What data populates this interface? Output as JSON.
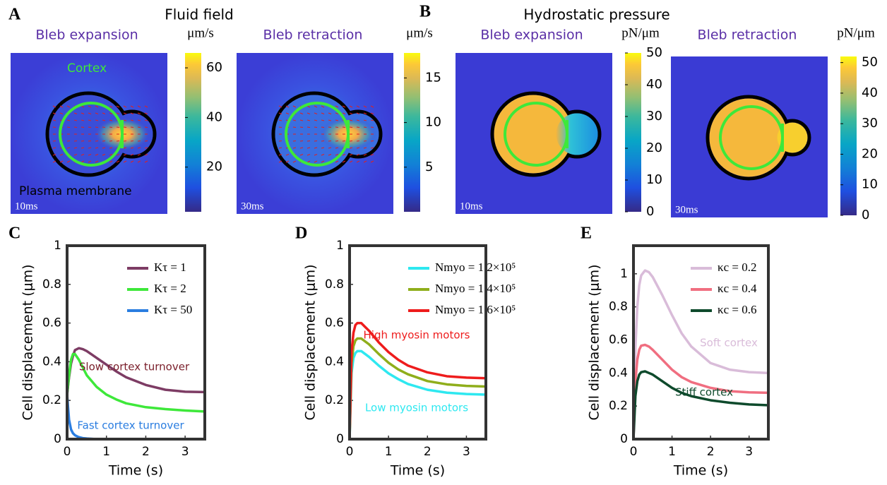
{
  "panels": [
    {
      "label": "A",
      "title": "Fluid field"
    },
    {
      "label": "B",
      "title": "Hydrostatic pressure"
    },
    {
      "label": "C"
    },
    {
      "label": "D"
    },
    {
      "label": "E"
    }
  ],
  "chart_data": [
    {
      "type": "map",
      "title": "Bleb expansion",
      "unit": "μm/s",
      "time": "10ms",
      "annotations": [
        "Cortex",
        "Plasma membrane"
      ],
      "clim": [
        2,
        66
      ],
      "cticks": [
        20,
        40,
        60
      ]
    },
    {
      "type": "map",
      "title": "Bleb retraction",
      "unit": "μm/s",
      "time": "30ms",
      "clim": [
        0,
        17.8
      ],
      "cticks": [
        5,
        10,
        15
      ]
    },
    {
      "type": "map",
      "title": "Bleb expansion",
      "unit": "pN/μm",
      "time": "10ms",
      "clim": [
        0,
        50
      ],
      "cticks": [
        0,
        10,
        20,
        30,
        40,
        50
      ]
    },
    {
      "type": "map",
      "title": "Bleb retraction",
      "unit": "pN/μm",
      "time": "30ms",
      "clim": [
        0,
        52
      ],
      "cticks": [
        0,
        10,
        20,
        30,
        40,
        50
      ]
    },
    {
      "type": "line",
      "xlabel": "Time (s)",
      "ylabel": "Cell displacement (μm)",
      "legend": "upper right",
      "x": [
        0,
        0.05,
        0.1,
        0.15,
        0.2,
        0.3,
        0.4,
        0.5,
        0.75,
        1,
        1.25,
        1.5,
        2,
        2.5,
        3,
        3.5
      ],
      "xlim": [
        0,
        3.5
      ],
      "xticks": [
        0,
        1,
        2,
        3
      ],
      "ylim": [
        0,
        1
      ],
      "yticks": [
        0,
        0.2,
        0.4,
        0.6,
        0.8,
        1
      ],
      "series": [
        {
          "name": "Kτ = 1",
          "color": "#7d3c64",
          "values": [
            0.23,
            0.32,
            0.39,
            0.43,
            0.46,
            0.47,
            0.465,
            0.455,
            0.42,
            0.385,
            0.35,
            0.32,
            0.28,
            0.255,
            0.245,
            0.243
          ]
        },
        {
          "name": "Kτ = 2",
          "color": "#3ee83a",
          "values": [
            0.23,
            0.33,
            0.41,
            0.44,
            0.44,
            0.41,
            0.37,
            0.33,
            0.27,
            0.23,
            0.205,
            0.185,
            0.165,
            0.155,
            0.148,
            0.143
          ]
        },
        {
          "name": "Kτ = 50",
          "color": "#2a7de0",
          "values": [
            0.23,
            0.1,
            0.05,
            0.03,
            0.02,
            0.01,
            0.005,
            0.003,
            0,
            0,
            0,
            0,
            0,
            0,
            0,
            0
          ]
        }
      ],
      "annotations": [
        {
          "text": "Slow cortex turnover",
          "color": "#7a1e2a"
        },
        {
          "text": "Fast cortex turnover",
          "color": "#2a7de0"
        }
      ]
    },
    {
      "type": "line",
      "xlabel": "Time (s)",
      "ylabel": "Cell displacement (μm)",
      "legend": "upper right",
      "x": [
        0,
        0.05,
        0.1,
        0.15,
        0.2,
        0.3,
        0.4,
        0.5,
        0.75,
        1,
        1.25,
        1.5,
        2,
        2.5,
        3,
        3.5
      ],
      "xlim": [
        0,
        3.5
      ],
      "xticks": [
        0,
        1,
        2,
        3
      ],
      "ylim": [
        0,
        1
      ],
      "yticks": [
        0,
        0.2,
        0.4,
        0.6,
        0.8,
        1
      ],
      "series": [
        {
          "name": "Nmyo = 1.2×10⁵",
          "color": "#2ee8f0",
          "values": [
            0,
            0.34,
            0.42,
            0.445,
            0.455,
            0.455,
            0.44,
            0.425,
            0.38,
            0.34,
            0.31,
            0.285,
            0.255,
            0.24,
            0.233,
            0.23
          ]
        },
        {
          "name": "Nmyo = 1.4×10⁵",
          "color": "#8fae1b",
          "values": [
            0,
            0.39,
            0.48,
            0.51,
            0.52,
            0.52,
            0.505,
            0.49,
            0.44,
            0.395,
            0.36,
            0.335,
            0.3,
            0.283,
            0.275,
            0.272
          ]
        },
        {
          "name": "Nmyo = 1.6×10⁵",
          "color": "#ee1c1c",
          "values": [
            0,
            0.45,
            0.55,
            0.59,
            0.6,
            0.6,
            0.58,
            0.56,
            0.5,
            0.45,
            0.41,
            0.38,
            0.345,
            0.325,
            0.318,
            0.315
          ]
        }
      ],
      "annotations": [
        {
          "text": "High myosin motors",
          "color": "#ee1c1c"
        },
        {
          "text": "Low myosin motors",
          "color": "#2ee8f0"
        }
      ]
    },
    {
      "type": "line",
      "xlabel": "Time (s)",
      "ylabel": "Cell displacement (μm)",
      "legend": "upper right",
      "x": [
        0,
        0.05,
        0.1,
        0.15,
        0.2,
        0.3,
        0.4,
        0.5,
        0.75,
        1,
        1.25,
        1.5,
        2,
        2.5,
        3,
        3.5
      ],
      "xlim": [
        0,
        3.5
      ],
      "xticks": [
        0,
        1,
        2,
        3
      ],
      "ylim": [
        0,
        1.17
      ],
      "yticks": [
        0,
        0.2,
        0.4,
        0.6,
        0.8,
        1
      ],
      "series": [
        {
          "name": "κc = 0.2",
          "color": "#d9bcd9",
          "values": [
            0,
            0.55,
            0.8,
            0.93,
            0.99,
            1.02,
            1.01,
            0.98,
            0.87,
            0.75,
            0.64,
            0.56,
            0.46,
            0.42,
            0.405,
            0.4
          ]
        },
        {
          "name": "κc = 0.4",
          "color": "#f06e80",
          "values": [
            0,
            0.35,
            0.48,
            0.54,
            0.565,
            0.57,
            0.56,
            0.54,
            0.48,
            0.42,
            0.375,
            0.345,
            0.31,
            0.29,
            0.283,
            0.28
          ]
        },
        {
          "name": "κc = 0.6",
          "color": "#0e4a2c",
          "values": [
            0,
            0.26,
            0.35,
            0.39,
            0.405,
            0.41,
            0.4,
            0.39,
            0.35,
            0.31,
            0.28,
            0.26,
            0.235,
            0.22,
            0.21,
            0.205
          ]
        }
      ],
      "annotations": [
        {
          "text": "Soft cortex",
          "color": "#d9bcd9"
        },
        {
          "text": "Stiff cortex",
          "color": "#0e4a2c"
        }
      ]
    }
  ]
}
